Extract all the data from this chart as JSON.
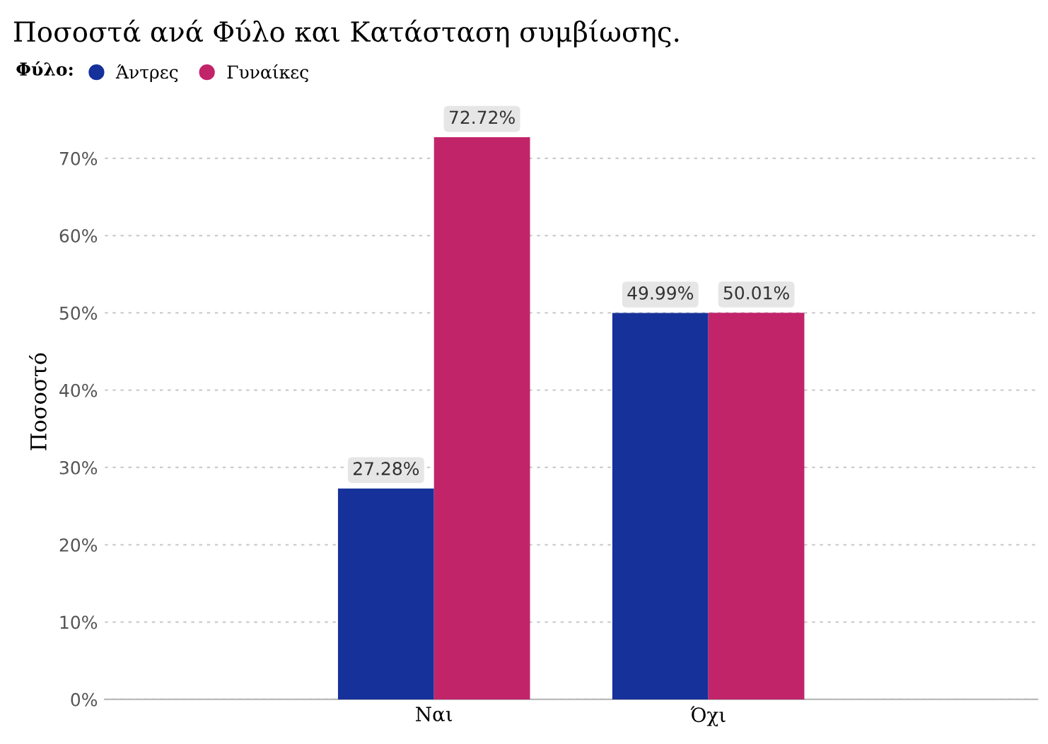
{
  "chart_data": {
    "type": "bar",
    "title": "Ποσοστά ανά Φύλο και Κατάσταση συμβίωσης.",
    "ylabel": "Ποσοστό",
    "legend_title": "Φύλο:",
    "categories": [
      "Ναι",
      "Όχι"
    ],
    "series": [
      {
        "name": "Άντρες",
        "color": "#16319a",
        "values": [
          27.28,
          49.99
        ],
        "value_labels": [
          "27.28%",
          "49.99%"
        ]
      },
      {
        "name": "Γυναίκες",
        "color": "#c2246a",
        "values": [
          72.72,
          50.01
        ],
        "value_labels": [
          "72.72%",
          "50.01%"
        ]
      }
    ],
    "ylim": [
      0,
      77
    ],
    "yticks": [
      {
        "value": 0,
        "label": "0%"
      },
      {
        "value": 10,
        "label": "10%"
      },
      {
        "value": 20,
        "label": "20%"
      },
      {
        "value": 30,
        "label": "30%"
      },
      {
        "value": 40,
        "label": "40%"
      },
      {
        "value": 50,
        "label": "50%"
      },
      {
        "value": 60,
        "label": "60%"
      },
      {
        "value": 70,
        "label": "70%"
      }
    ],
    "grid": "y",
    "legend": "top left"
  }
}
